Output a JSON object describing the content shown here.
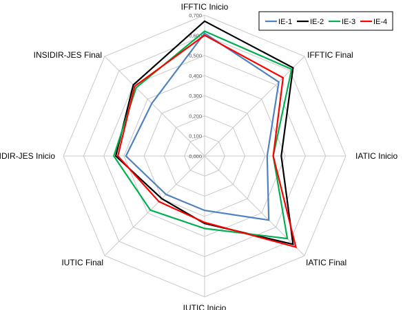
{
  "chart_data": {
    "type": "radar",
    "axes": [
      "IFFTIC Inicio",
      "IFFTIC Final",
      "IATIC Inicio",
      "IATIC Final",
      "IUTIC Inicio",
      "IUTIC Final",
      "INSIDIR-JES Inicio",
      "INSIDIR-JES Final"
    ],
    "ticks": [
      "0,000",
      "0,100",
      "0,200",
      "0,300",
      "0,400",
      "0,500",
      "0,600",
      "0,700"
    ],
    "rlim": [
      0,
      0.7
    ],
    "grid": true,
    "legend_position": "top-right",
    "series": [
      {
        "name": "IE-1",
        "color": "#4f81bd",
        "values": [
          0.61,
          0.52,
          0.31,
          0.45,
          0.27,
          0.27,
          0.39,
          0.37
        ]
      },
      {
        "name": "IE-2",
        "color": "#000000",
        "values": [
          0.67,
          0.62,
          0.38,
          0.62,
          0.335,
          0.3,
          0.44,
          0.5
        ]
      },
      {
        "name": "IE-3",
        "color": "#00b050",
        "values": [
          0.62,
          0.61,
          0.34,
          0.58,
          0.36,
          0.38,
          0.45,
          0.48
        ]
      },
      {
        "name": "IE-4",
        "color": "#ff0000",
        "values": [
          0.6,
          0.55,
          0.34,
          0.64,
          0.33,
          0.32,
          0.43,
          0.49
        ]
      }
    ]
  }
}
